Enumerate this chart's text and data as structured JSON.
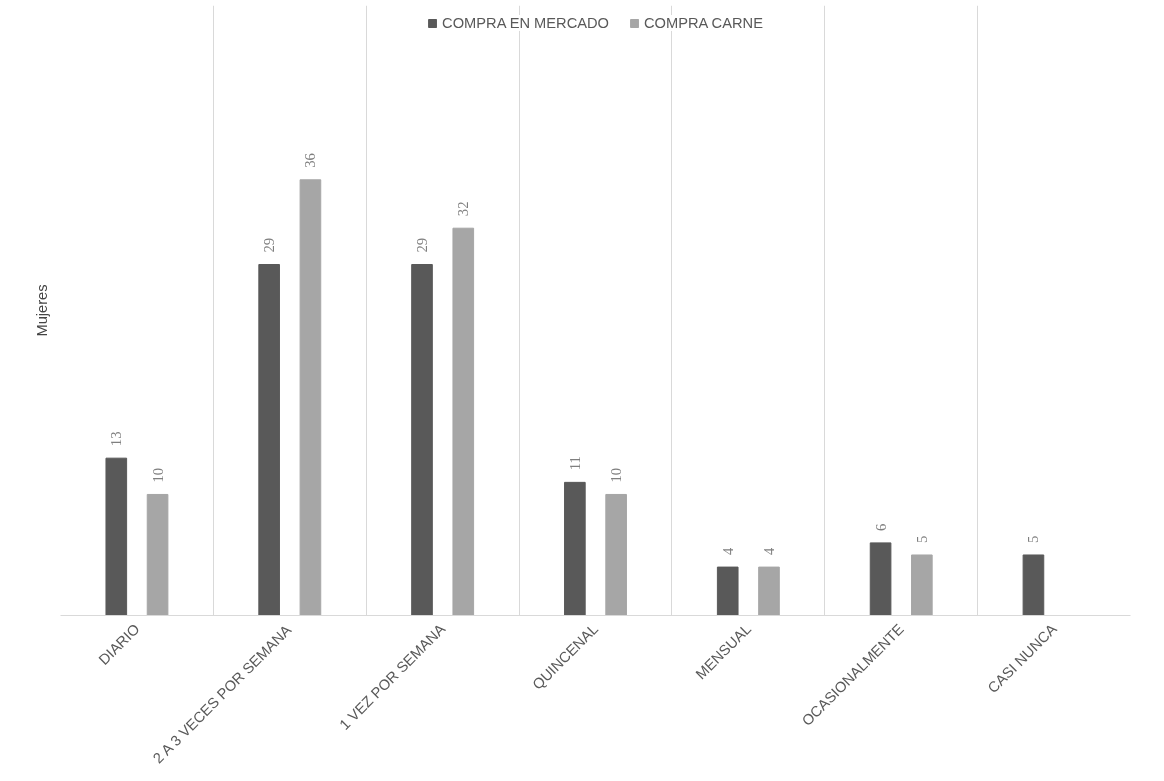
{
  "chart_data": {
    "type": "bar",
    "ylabel": "Mujeres",
    "categories": [
      "DIARIO",
      "2 A 3 VECES POR SEMANA",
      "1 VEZ POR SEMANA",
      "QUINCENAL",
      "MENSUAL",
      "OCASIONALMENTE",
      "CASI NUNCA"
    ],
    "series": [
      {
        "name": "COMPRA EN MERCADO",
        "color": "#595959",
        "values": [
          13,
          29,
          29,
          11,
          4,
          6,
          5
        ]
      },
      {
        "name": "COMPRA CARNE",
        "color": "#a6a6a6",
        "values": [
          10,
          36,
          32,
          10,
          4,
          5,
          null
        ]
      }
    ],
    "relative": false,
    "data_labels": true,
    "grid": "x",
    "legend": "top"
  }
}
